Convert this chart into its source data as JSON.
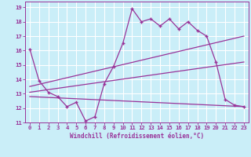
{
  "xlabel": "Windchill (Refroidissement éolien,°C)",
  "background_color": "#caeef8",
  "grid_color": "#ffffff",
  "line_color": "#993399",
  "xlim": [
    -0.5,
    23.5
  ],
  "ylim": [
    11,
    19.4
  ],
  "xticks": [
    0,
    1,
    2,
    3,
    4,
    5,
    6,
    7,
    8,
    9,
    10,
    11,
    12,
    13,
    14,
    15,
    16,
    17,
    18,
    19,
    20,
    21,
    22,
    23
  ],
  "yticks": [
    11,
    12,
    13,
    14,
    15,
    16,
    17,
    18,
    19
  ],
  "line1_x": [
    0,
    1,
    2,
    3,
    4,
    5,
    6,
    7,
    8,
    9,
    10,
    11,
    12,
    13,
    14,
    15,
    16,
    17,
    18,
    19,
    20,
    21,
    22,
    23
  ],
  "line1_y": [
    16.1,
    13.9,
    13.1,
    12.8,
    12.1,
    12.4,
    11.1,
    11.4,
    13.7,
    14.9,
    16.5,
    18.9,
    18.0,
    18.2,
    17.7,
    18.2,
    17.5,
    18.0,
    17.4,
    17.0,
    15.2,
    12.6,
    12.2,
    12.1
  ],
  "line2_x": [
    0,
    23
  ],
  "line2_y": [
    13.5,
    17.0
  ],
  "line3_x": [
    0,
    23
  ],
  "line3_y": [
    13.1,
    15.2
  ],
  "line4_x": [
    0,
    23
  ],
  "line4_y": [
    12.8,
    12.1
  ]
}
